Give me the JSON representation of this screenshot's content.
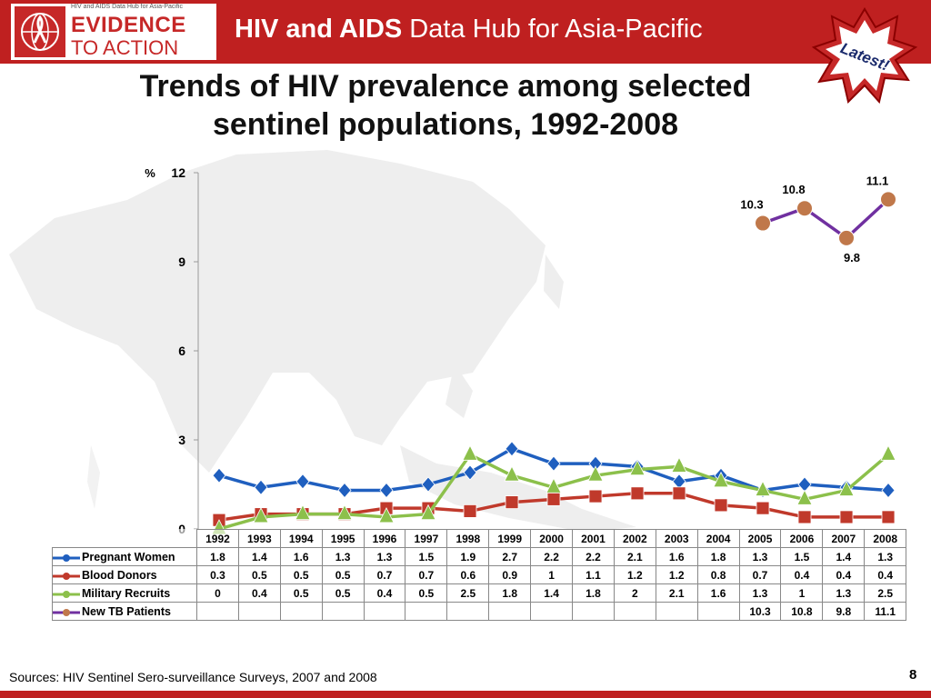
{
  "header": {
    "logo_tagline": "HIV and AIDS Data Hub for Asia-Pacific",
    "logo_word1": "EVIDENCE",
    "logo_word2": "TO ACTION",
    "hub_title_bold": "HIV and AIDS",
    "hub_title_rest": " Data Hub for Asia-Pacific",
    "badge": "Latest!",
    "brand_color": "#bf2020"
  },
  "slide": {
    "title_line1": "Trends of HIV prevalence among selected",
    "title_line2": "sentinel populations, 1992-2008",
    "sources": "Sources: HIV Sentinel Sero-surveillance Surveys, 2007 and 2008",
    "page_number": "8"
  },
  "chart_data": {
    "type": "line",
    "title": "Trends of HIV prevalence among selected sentinel populations, 1992-2008",
    "ylabel": "%",
    "ylim": [
      0,
      12
    ],
    "yticks": [
      "0",
      "3",
      "6",
      "9",
      "12"
    ],
    "categories": [
      "1992",
      "1993",
      "1994",
      "1995",
      "1996",
      "1997",
      "1998",
      "1999",
      "2000",
      "2001",
      "2002",
      "2003",
      "2004",
      "2005",
      "2006",
      "2007",
      "2008"
    ],
    "series": [
      {
        "name": "Pregnant Women",
        "color": "#1f5fbf",
        "marker": "diamond",
        "values": [
          1.8,
          1.4,
          1.6,
          1.3,
          1.3,
          1.5,
          1.9,
          2.7,
          2.2,
          2.2,
          2.1,
          1.6,
          1.8,
          1.3,
          1.5,
          1.4,
          1.3
        ],
        "labels": [
          "1.8",
          "1.4",
          "1.6",
          "1.3",
          "1.3",
          "1.5",
          "1.9",
          "2.7",
          "2.2",
          "2.2",
          "2.1",
          "1.6",
          "1.8",
          "1.3",
          "1.5",
          "1.4",
          "1.3"
        ]
      },
      {
        "name": "Blood Donors",
        "color": "#c0392b",
        "marker": "square",
        "values": [
          0.3,
          0.5,
          0.5,
          0.5,
          0.7,
          0.7,
          0.6,
          0.9,
          1,
          1.1,
          1.2,
          1.2,
          0.8,
          0.7,
          0.4,
          0.4,
          0.4
        ],
        "labels": [
          "0.3",
          "0.5",
          "0.5",
          "0.5",
          "0.7",
          "0.7",
          "0.6",
          "0.9",
          "1",
          "1.1",
          "1.2",
          "1.2",
          "0.8",
          "0.7",
          "0.4",
          "0.4",
          "0.4"
        ]
      },
      {
        "name": "Military Recruits",
        "color": "#8cc04b",
        "marker": "triangle",
        "values": [
          0,
          0.4,
          0.5,
          0.5,
          0.4,
          0.5,
          2.5,
          1.8,
          1.4,
          1.8,
          2,
          2.1,
          1.6,
          1.3,
          1,
          1.3,
          2.5
        ],
        "labels": [
          "0",
          "0.4",
          "0.5",
          "0.5",
          "0.4",
          "0.5",
          "2.5",
          "1.8",
          "1.4",
          "1.8",
          "2",
          "2.1",
          "1.6",
          "1.3",
          "1",
          "1.3",
          "2.5"
        ]
      },
      {
        "name": "New TB Patients",
        "color": "#7030a0",
        "marker": "circle",
        "marker_color": "#c0784a",
        "values": [
          null,
          null,
          null,
          null,
          null,
          null,
          null,
          null,
          null,
          null,
          null,
          null,
          null,
          10.3,
          10.8,
          9.8,
          11.1
        ],
        "labels": [
          "",
          "",
          "",
          "",
          "",
          "",
          "",
          "",
          "",
          "",
          "",
          "",
          "",
          "10.3",
          "10.8",
          "9.8",
          "11.1"
        ]
      }
    ],
    "data_labels_series": "New TB Patients",
    "grid": false,
    "legend": "table-below"
  }
}
